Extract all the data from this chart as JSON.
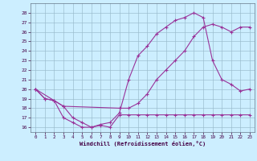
{
  "xlabel": "Windchill (Refroidissement éolien,°C)",
  "bg_color": "#cceeff",
  "line_color": "#993399",
  "grid_color": "#99bbcc",
  "ylim": [
    15.5,
    29
  ],
  "xlim": [
    -0.5,
    23.5
  ],
  "yticks": [
    16,
    17,
    18,
    19,
    20,
    21,
    22,
    23,
    24,
    25,
    26,
    27,
    28
  ],
  "xticks": [
    0,
    1,
    2,
    3,
    4,
    5,
    6,
    7,
    8,
    9,
    10,
    11,
    12,
    13,
    14,
    15,
    16,
    17,
    18,
    19,
    20,
    21,
    22,
    23
  ],
  "line1_x": [
    0,
    1,
    2,
    3,
    4,
    5,
    6,
    7,
    8,
    9,
    10,
    11,
    12,
    13,
    14,
    15,
    16,
    17,
    18,
    19,
    20,
    21,
    22,
    23
  ],
  "line1_y": [
    20.0,
    19.0,
    18.8,
    18.2,
    17.0,
    16.5,
    16.0,
    16.3,
    16.5,
    17.5,
    21.0,
    23.5,
    24.5,
    25.8,
    26.5,
    27.2,
    27.5,
    28.0,
    27.5,
    23.0,
    21.0,
    20.5,
    19.8,
    20.0
  ],
  "line2_x": [
    0,
    3,
    9,
    10,
    11,
    12,
    13,
    14,
    15,
    16,
    17,
    18,
    19,
    20,
    21,
    22,
    23
  ],
  "line2_y": [
    20.0,
    18.2,
    18.0,
    18.0,
    18.5,
    19.5,
    21.0,
    22.0,
    23.0,
    24.0,
    25.5,
    26.5,
    26.8,
    26.5,
    26.0,
    26.5,
    26.5
  ],
  "line3_x": [
    0,
    1,
    2,
    3,
    4,
    5,
    6,
    7,
    8,
    9,
    10,
    11,
    12,
    13,
    14,
    15,
    16,
    17,
    18,
    19,
    20,
    21,
    22,
    23
  ],
  "line3_y": [
    20.0,
    19.0,
    18.8,
    17.0,
    16.5,
    16.0,
    16.0,
    16.2,
    16.0,
    17.3,
    17.3,
    17.3,
    17.3,
    17.3,
    17.3,
    17.3,
    17.3,
    17.3,
    17.3,
    17.3,
    17.3,
    17.3,
    17.3,
    17.3
  ]
}
